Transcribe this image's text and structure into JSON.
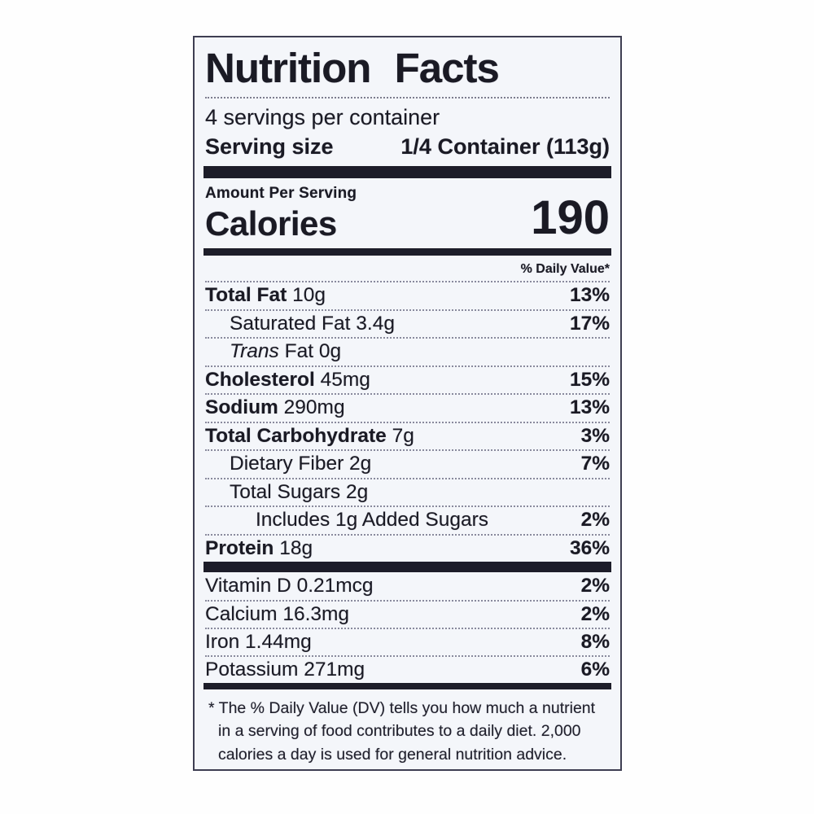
{
  "label": {
    "title": "Nutrition Facts",
    "servings_per_container": "4 servings per container",
    "serving_size_label": "Serving size",
    "serving_size_value": "1/4 Container (113g)",
    "amount_per_serving": "Amount Per Serving",
    "calories_label": "Calories",
    "calories_value": "190",
    "daily_value_header": "% Daily Value*",
    "nutrients": [
      {
        "name": "Total Fat",
        "amount": "10g",
        "dv": "13%"
      },
      {
        "name": "Saturated Fat",
        "amount": "3.4g",
        "dv": "17%"
      },
      {
        "name_italic": "Trans",
        "name": "Fat",
        "amount": "0g",
        "dv": ""
      },
      {
        "name": "Cholesterol",
        "amount": "45mg",
        "dv": "15%"
      },
      {
        "name": "Sodium",
        "amount": "290mg",
        "dv": "13%"
      },
      {
        "name": "Total Carbohydrate",
        "amount": "7g",
        "dv": "3%"
      },
      {
        "name": "Dietary Fiber",
        "amount": "2g",
        "dv": "7%"
      },
      {
        "name": "Total Sugars",
        "amount": "2g",
        "dv": ""
      },
      {
        "name": "Includes 1g Added Sugars",
        "amount": "",
        "dv": "2%"
      },
      {
        "name": "Protein",
        "amount": "18g",
        "dv": "36%"
      }
    ],
    "micronutrients": [
      {
        "name": "Vitamin D",
        "amount": "0.21mcg",
        "dv": "2%"
      },
      {
        "name": "Calcium",
        "amount": "16.3mg",
        "dv": "2%"
      },
      {
        "name": "Iron",
        "amount": "1.44mg",
        "dv": "8%"
      },
      {
        "name": "Potassium",
        "amount": "271mg",
        "dv": "6%"
      }
    ],
    "footnote": "* The % Daily Value (DV) tells you how much a nutrient in a serving of food contributes to a daily diet. 2,000 calories a day is used for general nutrition advice."
  },
  "colors": {
    "ink": "#1a1a24",
    "paper": "#f4f6fa",
    "bar": "#1d1d29",
    "page": "#fefefe"
  }
}
